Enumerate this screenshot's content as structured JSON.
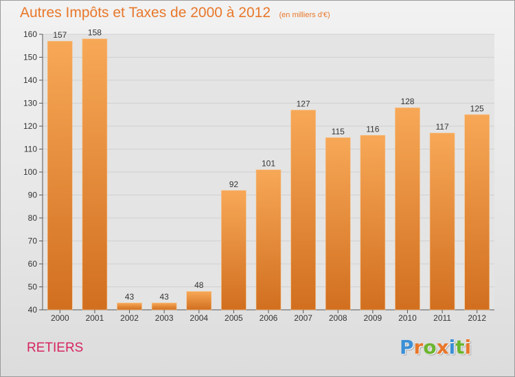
{
  "header": {
    "title": "Autres Impôts et Taxes de 2000 à 2012",
    "unit": "(en milliers d'€)"
  },
  "footer": {
    "commune": "RETIERS",
    "brand": "Proxiti"
  },
  "colors": {
    "title": "#e8772a",
    "commune": "#d6245e",
    "bar_top": "#f7a857",
    "bar_bottom": "#d16f1f",
    "brand_letters": [
      "#3b8fd6",
      "#e8772a",
      "#6bb52e",
      "#e8772a",
      "#3b8fd6",
      "#6bb52e",
      "#e8772a"
    ]
  },
  "chart_data": {
    "type": "bar",
    "categories": [
      "2000",
      "2001",
      "2002",
      "2003",
      "2004",
      "2005",
      "2006",
      "2007",
      "2008",
      "2009",
      "2010",
      "2011",
      "2012"
    ],
    "values": [
      157,
      158,
      43,
      43,
      48,
      92,
      101,
      127,
      115,
      116,
      128,
      117,
      125
    ],
    "ylim": [
      40,
      160
    ],
    "yticks": [
      40,
      50,
      60,
      70,
      80,
      90,
      100,
      110,
      120,
      130,
      140,
      150,
      160
    ],
    "grid": true,
    "data_labels": true
  }
}
